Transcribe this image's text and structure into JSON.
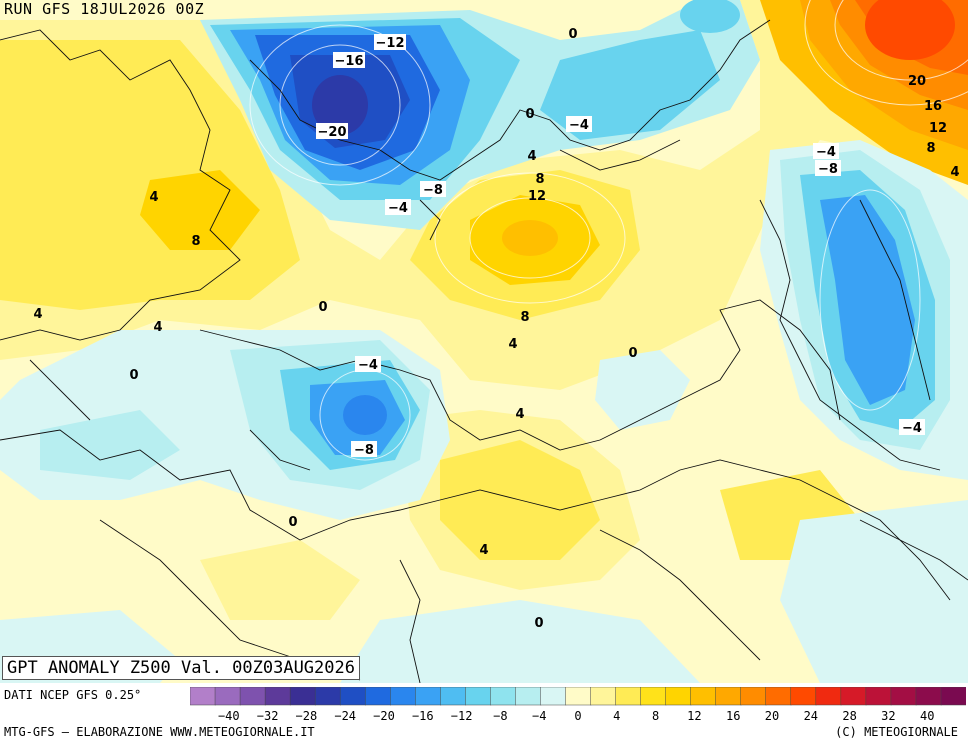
{
  "header": {
    "run_title": "RUN GFS 18JUL2026 00Z",
    "map_title": "GPT ANOMALY Z500 Val. 00Z03AUG2026"
  },
  "footer": {
    "source": "DATI NCEP GFS 0.25°",
    "credit_left": "MTG-GFS — ELABORAZIONE WWW.METEOGIORNALE.IT",
    "credit_right": "(C) METEOGIORNALE"
  },
  "legend": {
    "tick_labels": [
      "−40",
      "−32",
      "−28",
      "−24",
      "−20",
      "−16",
      "−12",
      "−8",
      "−4",
      "0",
      "4",
      "8",
      "12",
      "16",
      "20",
      "24",
      "28",
      "32",
      "40"
    ],
    "colors": [
      "#b27fc9",
      "#9a6bbe",
      "#7e52ae",
      "#5d3a9a",
      "#3a2f94",
      "#2c3aa8",
      "#1f4fc4",
      "#1f6ae0",
      "#2a86ee",
      "#3aa2f4",
      "#4fbdf2",
      "#68d3ee",
      "#8fe3ee",
      "#b7eef0",
      "#d9f6f4",
      "#fffbc8",
      "#fff59a",
      "#ffeb55",
      "#ffe21a",
      "#ffd400",
      "#ffbf00",
      "#ffa800",
      "#ff8c00",
      "#ff6c00",
      "#ff4a00",
      "#f02a10",
      "#d61a28",
      "#bc1238",
      "#a30e44",
      "#8c0c4c",
      "#7a0a50"
    ]
  },
  "map_labels": [
    {
      "text": "−12"
    },
    {
      "text": "−16"
    },
    {
      "text": "−20"
    },
    {
      "text": "0"
    },
    {
      "text": "−4"
    },
    {
      "text": "−8"
    },
    {
      "text": "−4"
    },
    {
      "text": "4"
    },
    {
      "text": "8"
    },
    {
      "text": "12"
    },
    {
      "text": "4"
    },
    {
      "text": "8"
    },
    {
      "text": "0"
    },
    {
      "text": "4"
    },
    {
      "text": "4"
    },
    {
      "text": "0"
    },
    {
      "text": "8"
    },
    {
      "text": "4"
    },
    {
      "text": "0"
    },
    {
      "text": "−4"
    },
    {
      "text": "−8"
    },
    {
      "text": "4"
    },
    {
      "text": "0"
    },
    {
      "text": "4"
    },
    {
      "text": "0"
    },
    {
      "text": "20"
    },
    {
      "text": "16"
    },
    {
      "text": "12"
    },
    {
      "text": "8"
    },
    {
      "text": "4"
    },
    {
      "text": "−4"
    },
    {
      "text": "−8"
    },
    {
      "text": "−4"
    },
    {
      "text": "0"
    }
  ]
}
